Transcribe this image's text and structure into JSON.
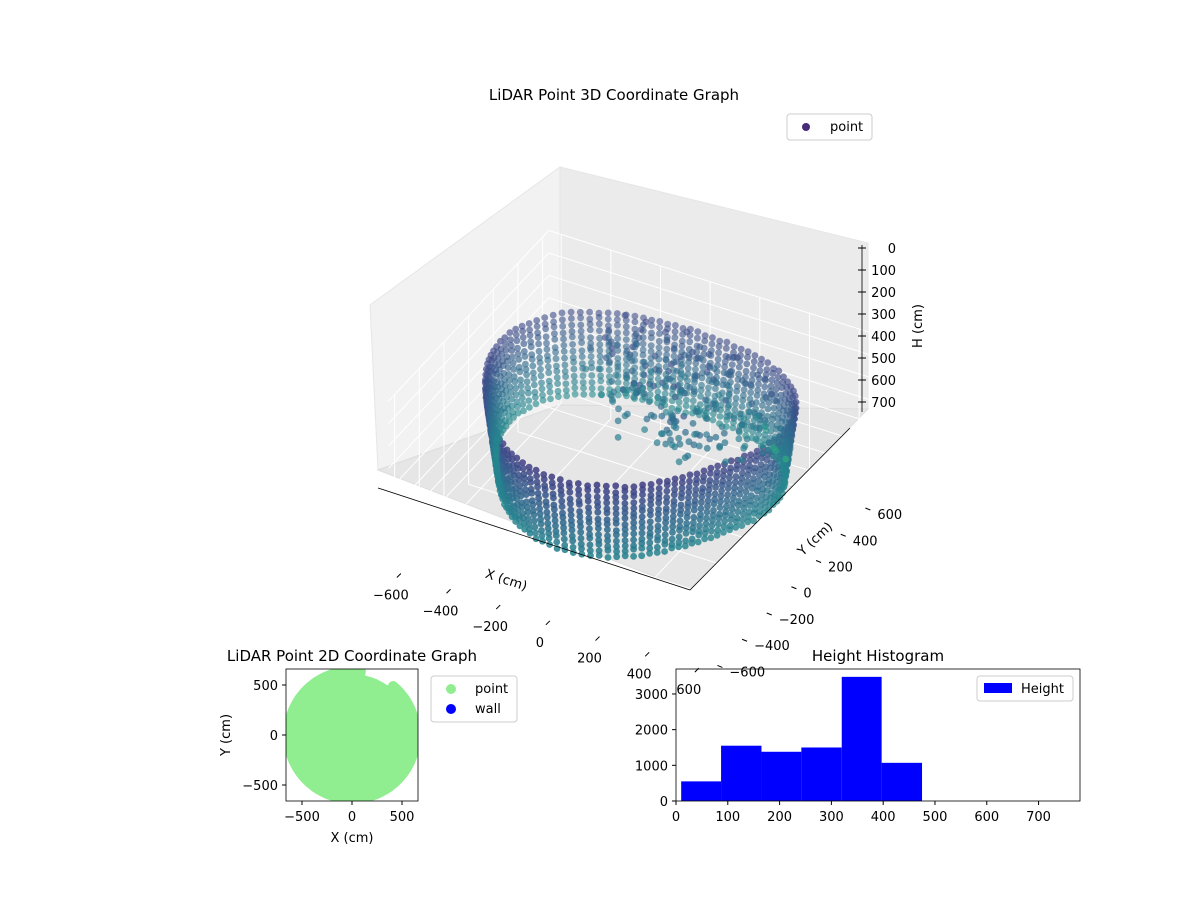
{
  "chart_data": [
    {
      "type": "scatter",
      "dimension": "3d",
      "title": "LiDAR Point 3D Coordinate Graph",
      "xlabel": "X (cm)",
      "ylabel": "Y (cm)",
      "zlabel": "H (cm)",
      "x_ticks": [
        "−600",
        "−400",
        "−200",
        "0",
        "200",
        "400",
        "600"
      ],
      "y_ticks": [
        "−600",
        "−400",
        "−200",
        "0",
        "200",
        "400",
        "600"
      ],
      "z_ticks": [
        "0",
        "100",
        "200",
        "300",
        "400",
        "500",
        "600",
        "700"
      ],
      "xlim": [
        -650,
        650
      ],
      "ylim": [
        -650,
        650
      ],
      "zlim": [
        0,
        750
      ],
      "z_inverted": true,
      "colormap": "viridis",
      "grid": true,
      "legend": {
        "position": "upper right",
        "entries": [
          {
            "label": "point",
            "color": "#472c7a"
          }
        ]
      },
      "series": [
        {
          "name": "point",
          "description_values": "ring of points roughly radius 480-620 cm around origin, heights mostly 100-480 cm, a few outliers near x=200,y=600 at heights 470-700",
          "outliers": [
            {
              "x": 230,
              "y": 560,
              "h": 470
            },
            {
              "x": 250,
              "y": 590,
              "h": 520
            },
            {
              "x": 250,
              "y": 600,
              "h": 545
            },
            {
              "x": 260,
              "y": 640,
              "h": 640
            },
            {
              "x": 265,
              "y": 650,
              "h": 660
            },
            {
              "x": 280,
              "y": 700,
              "h": 720
            }
          ]
        }
      ]
    },
    {
      "type": "scatter",
      "title": "LiDAR Point 2D Coordinate Graph",
      "xlabel": "X (cm)",
      "ylabel": "Y (cm)",
      "x_ticks": [
        "−500",
        "0",
        "500"
      ],
      "y_ticks": [
        "500",
        "0",
        "−500"
      ],
      "xlim": [
        -660,
        660
      ],
      "ylim": [
        -660,
        660
      ],
      "legend": {
        "position": "outside right",
        "entries": [
          {
            "label": "point",
            "color": "#90ee90"
          },
          {
            "label": "wall",
            "color": "#0000ff"
          }
        ]
      },
      "series": [
        {
          "name": "point",
          "color": "#90ee90",
          "shape": "filled disc, radius ~620 cm, clipped on right side x>640"
        },
        {
          "name": "wall",
          "color": "#0000ff",
          "values": []
        }
      ]
    },
    {
      "type": "bar",
      "subtype": "histogram",
      "title": "Height Histogram",
      "x_ticks": [
        "0",
        "100",
        "200",
        "300",
        "400",
        "500",
        "600",
        "700"
      ],
      "y_ticks": [
        "0",
        "1000",
        "2000",
        "3000"
      ],
      "xlim": [
        0,
        780
      ],
      "ylim": [
        0,
        3700
      ],
      "legend": {
        "position": "upper right",
        "entries": [
          {
            "label": "Height",
            "color": "#0000ff"
          }
        ]
      },
      "color": "#0000ff",
      "bins": [
        {
          "start": 10,
          "end": 87,
          "count": 550
        },
        {
          "start": 87,
          "end": 165,
          "count": 1550
        },
        {
          "start": 165,
          "end": 242,
          "count": 1380
        },
        {
          "start": 242,
          "end": 320,
          "count": 1500
        },
        {
          "start": 320,
          "end": 397,
          "count": 3480
        },
        {
          "start": 397,
          "end": 475,
          "count": 1070
        }
      ]
    }
  ]
}
